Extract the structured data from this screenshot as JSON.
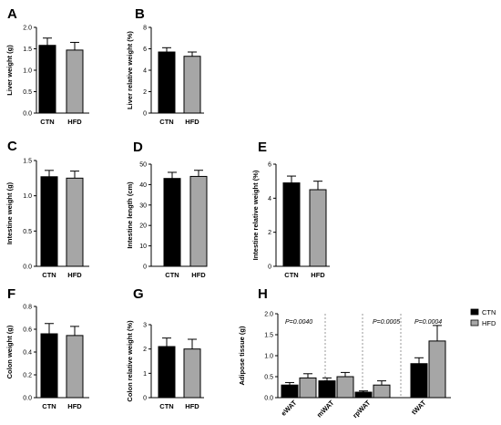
{
  "colors": {
    "CTN": "#000000",
    "HFD": "#a6a6a6",
    "axis": "#000000",
    "separator": "#808080"
  },
  "legend": [
    {
      "name": "CTN",
      "color": "#000000"
    },
    {
      "name": "HFD",
      "color": "#a6a6a6"
    }
  ],
  "chart_data": [
    {
      "panel": "A",
      "type": "bar",
      "categories": [
        "CTN",
        "HFD"
      ],
      "values": [
        1.58,
        1.47
      ],
      "errors": [
        0.17,
        0.18
      ],
      "ylabel": "Liver weight (g)",
      "ylim": [
        0,
        2.0
      ],
      "yticks": [
        "0.0",
        "0.5",
        "1.0",
        "1.5",
        "2.0"
      ]
    },
    {
      "panel": "B",
      "type": "bar",
      "categories": [
        "CTN",
        "HFD"
      ],
      "values": [
        5.7,
        5.3
      ],
      "errors": [
        0.4,
        0.4
      ],
      "ylabel": "Liver relative weight (%)",
      "ylim": [
        0,
        8
      ],
      "yticks": [
        "0",
        "2",
        "4",
        "6",
        "8"
      ]
    },
    {
      "panel": "C",
      "type": "bar",
      "categories": [
        "CTN",
        "HFD"
      ],
      "values": [
        1.27,
        1.25
      ],
      "errors": [
        0.09,
        0.1
      ],
      "ylabel": "Intestine weight (g)",
      "ylim": [
        0,
        1.5
      ],
      "yticks": [
        "0.0",
        "0.5",
        "1.0",
        "1.5"
      ]
    },
    {
      "panel": "D",
      "type": "bar",
      "categories": [
        "CTN",
        "HFD"
      ],
      "values": [
        43,
        44
      ],
      "errors": [
        3,
        3
      ],
      "ylabel": "Intestine length (cm)",
      "ylim": [
        0,
        50
      ],
      "yticks": [
        "0",
        "10",
        "20",
        "30",
        "40",
        "50"
      ]
    },
    {
      "panel": "E",
      "type": "bar",
      "categories": [
        "CTN",
        "HFD"
      ],
      "values": [
        4.9,
        4.5
      ],
      "errors": [
        0.4,
        0.5
      ],
      "ylabel": "Intestine relative weight (%)",
      "ylim": [
        0,
        6
      ],
      "yticks": [
        "0",
        "2",
        "4",
        "6"
      ]
    },
    {
      "panel": "F",
      "type": "bar",
      "categories": [
        "CTN",
        "HFD"
      ],
      "values": [
        0.56,
        0.545
      ],
      "errors": [
        0.09,
        0.08
      ],
      "ylabel": "Colon weight (g)",
      "ylim": [
        0,
        0.8
      ],
      "yticks": [
        "0.0",
        "0.2",
        "0.4",
        "0.6",
        "0.8"
      ]
    },
    {
      "panel": "G",
      "type": "bar",
      "categories": [
        "CTN",
        "HFD"
      ],
      "values": [
        2.1,
        2.0
      ],
      "errors": [
        0.35,
        0.4
      ],
      "ylabel": "Colon relative weight (%)",
      "ylim": [
        0,
        3
      ],
      "yticks": [
        "0",
        "1",
        "2",
        "3"
      ]
    },
    {
      "panel": "H",
      "type": "bar",
      "categories": [
        "eWAT",
        "mWAT",
        "rpWAT",
        "tWAT"
      ],
      "series": [
        {
          "name": "CTN",
          "values": [
            0.3,
            0.4,
            0.13,
            0.81
          ],
          "errors": [
            0.06,
            0.07,
            0.03,
            0.14
          ]
        },
        {
          "name": "HFD",
          "values": [
            0.47,
            0.5,
            0.3,
            1.35
          ],
          "errors": [
            0.1,
            0.1,
            0.1,
            0.37
          ]
        }
      ],
      "annotations": [
        "P=0.0040",
        "",
        "P=0.0005",
        "P=0.0004"
      ],
      "ylabel": "Adipose tissue (g)",
      "ylim": [
        0,
        2.0
      ],
      "yticks": [
        "0.0",
        "0.5",
        "1.0",
        "1.5",
        "2.0"
      ]
    }
  ]
}
